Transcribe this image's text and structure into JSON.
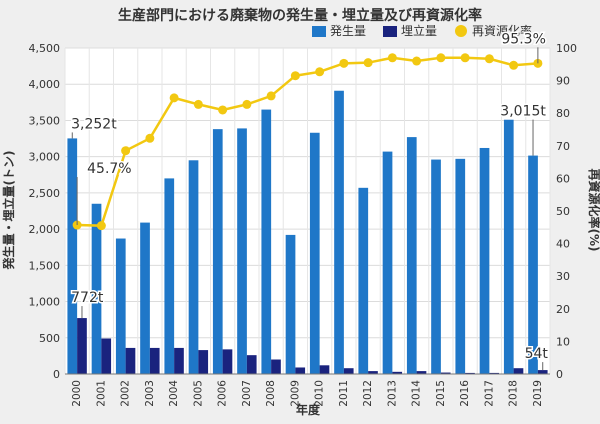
{
  "chart_data": {
    "type": "bar",
    "title": "生産部門における廃棄物の発生量・埋立量及び再資源化率",
    "xlabel": "年度",
    "ylabel_left": "発生量・埋立量(トン)",
    "ylabel_right": "再資源化率(%)",
    "ylim_left": [
      0,
      4500
    ],
    "ylim_right": [
      0,
      100
    ],
    "yticks_left": [
      "0",
      "500",
      "1,000",
      "1,500",
      "2,000",
      "2,500",
      "3,000",
      "3,500",
      "4,000",
      "4,500"
    ],
    "yticks_right": [
      "0",
      "10",
      "20",
      "30",
      "40",
      "50",
      "60",
      "70",
      "80",
      "90",
      "100"
    ],
    "grid": true,
    "legend_position": "top-right",
    "categories": [
      "2000",
      "2001",
      "2002",
      "2003",
      "2004",
      "2005",
      "2006",
      "2007",
      "2008",
      "2009",
      "2010",
      "2011",
      "2012",
      "2013",
      "2014",
      "2015",
      "2016",
      "2017",
      "2018",
      "2019"
    ],
    "series": [
      {
        "name": "発生量",
        "kind": "bar",
        "axis": "left",
        "color": "#1f77c8",
        "values": [
          3252,
          2350,
          1870,
          2090,
          2700,
          2950,
          3380,
          3390,
          3650,
          1920,
          3330,
          3910,
          2570,
          3070,
          3270,
          2960,
          2970,
          3120,
          3510,
          3015
        ]
      },
      {
        "name": "埋立量",
        "kind": "bar",
        "axis": "left",
        "color": "#1a237e",
        "values": [
          772,
          490,
          360,
          360,
          360,
          330,
          340,
          260,
          200,
          90,
          120,
          80,
          40,
          30,
          40,
          20,
          15,
          15,
          80,
          54
        ]
      },
      {
        "name": "再資源化率",
        "kind": "line",
        "axis": "right",
        "color": "#f2c811",
        "values": [
          45.7,
          45.5,
          68.5,
          72.3,
          84.7,
          82.7,
          81.0,
          82.7,
          85.3,
          91.5,
          92.7,
          95.3,
          95.5,
          97.0,
          96.0,
          97.0,
          97.0,
          96.7,
          94.7,
          95.3
        ]
      }
    ],
    "annotations": [
      {
        "text": "3,252t",
        "series": 0,
        "index": 0
      },
      {
        "text": "3,015t",
        "series": 0,
        "index": 19
      },
      {
        "text": "772t",
        "series": 1,
        "index": 0
      },
      {
        "text": "54t",
        "series": 1,
        "index": 19
      },
      {
        "text": "45.7%",
        "series": 2,
        "index": 0
      },
      {
        "text": "95.3%",
        "series": 2,
        "index": 19
      }
    ]
  }
}
